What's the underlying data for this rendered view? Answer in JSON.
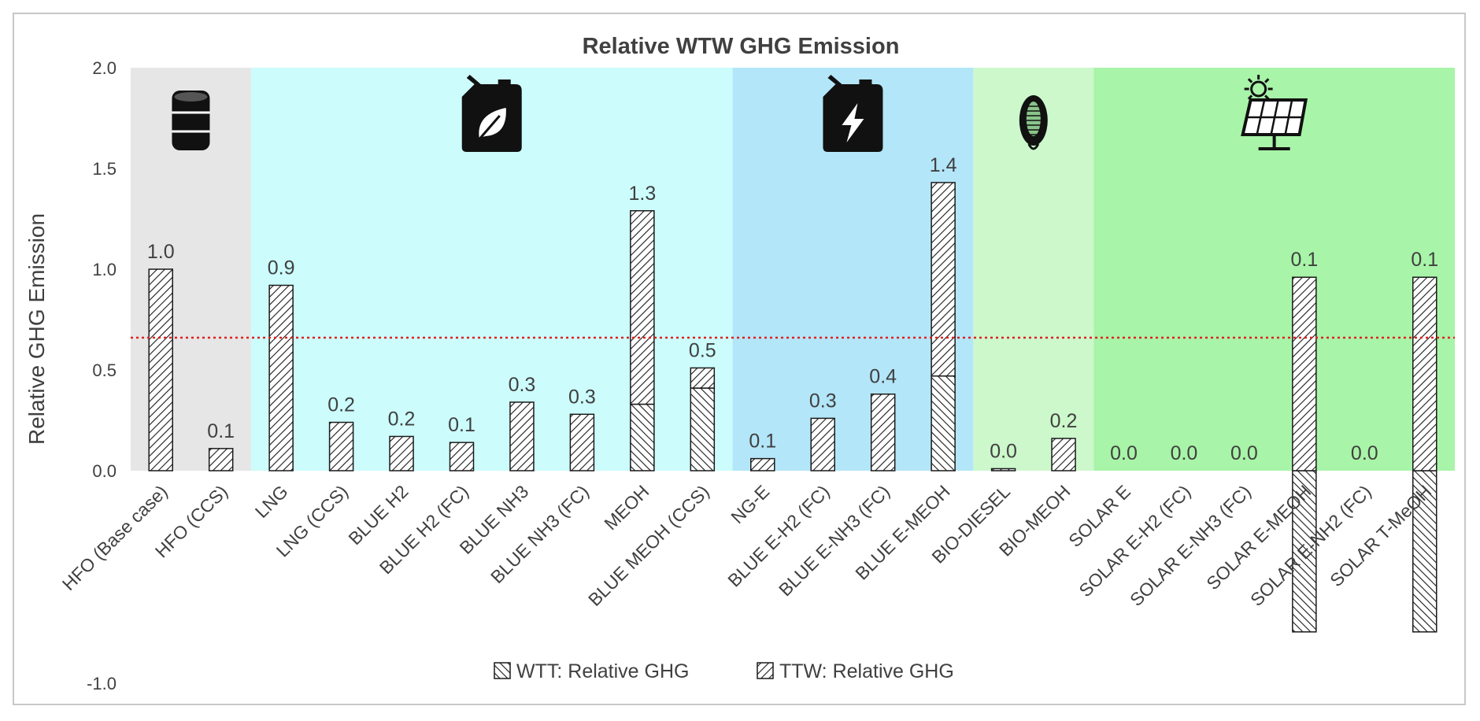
{
  "chart_data": {
    "type": "bar",
    "stacked": true,
    "title": "Relative WTW GHG Emission",
    "xlabel": "",
    "ylabel": "Relative GHG Emission",
    "ylim": [
      -1.0,
      2.0
    ],
    "yticks": [
      "-1.0",
      "0.0",
      "0.5",
      "1.0",
      "1.5",
      "2.0"
    ],
    "ytick_values": [
      -1.0,
      0.0,
      0.5,
      1.0,
      1.5,
      2.0
    ],
    "reference_line": {
      "y": 0.66,
      "color": "#e02020",
      "style": "dotted"
    },
    "categories": [
      "HFO (Base case)",
      "HFO (CCS)",
      "LNG",
      "LNG (CCS)",
      "BLUE H2",
      "BLUE H2 (FC)",
      "BLUE NH3",
      "BLUE NH3 (FC)",
      "MEOH",
      "BLUE MEOH (CCS)",
      "NG-E",
      "BLUE E-H2 (FC)",
      "BLUE E-NH3 (FC)",
      "BLUE E-MEOH",
      "BIO-DIESEL",
      "BIO-MEOH",
      "SOLAR E",
      "SOLAR E-H2 (FC)",
      "SOLAR E-NH3 (FC)",
      "SOLAR E-MEOH",
      "SOLAR E-NH2 (FC)",
      "SOLAR T-MeOH"
    ],
    "series": [
      {
        "name": "WTT: Relative GHG",
        "values": [
          0.0,
          0.0,
          0.0,
          0.0,
          0.0,
          0.0,
          0.0,
          0.0,
          0.33,
          0.41,
          0.0,
          0.0,
          0.0,
          0.47,
          0.0,
          0.0,
          0.0,
          0.0,
          0.0,
          -0.8,
          0.0,
          -0.8
        ]
      },
      {
        "name": "TTW: Relative GHG",
        "values": [
          1.0,
          0.11,
          0.92,
          0.24,
          0.17,
          0.14,
          0.34,
          0.28,
          0.96,
          0.1,
          0.06,
          0.26,
          0.38,
          0.96,
          0.01,
          0.16,
          0.0,
          0.0,
          0.0,
          0.96,
          0.0,
          0.96
        ]
      }
    ],
    "data_labels": [
      "1.0",
      "0.1",
      "0.9",
      "0.2",
      "0.2",
      "0.1",
      "0.3",
      "0.3",
      "1.3",
      "0.5",
      "0.1",
      "0.3",
      "0.4",
      "1.4",
      "0.0",
      "0.2",
      "0.0",
      "0.0",
      "0.0",
      "0.1",
      "0.0",
      "0.1"
    ],
    "groups": [
      {
        "name": "fossil-oil",
        "icon": "oil-barrel-icon",
        "from": 0,
        "to": 1,
        "color": "#e6e6e6"
      },
      {
        "name": "blue-fuels",
        "icon": "fuel-can-leaf-icon",
        "from": 2,
        "to": 9,
        "color": "#ccfcfc"
      },
      {
        "name": "blue-e-fuels",
        "icon": "fuel-can-bolt-icon",
        "from": 10,
        "to": 13,
        "color": "#b3e6f8"
      },
      {
        "name": "bio-fuels",
        "icon": "corn-icon",
        "from": 14,
        "to": 15,
        "color": "#ccf8cc"
      },
      {
        "name": "solar-fuels",
        "icon": "solar-panel-icon",
        "from": 16,
        "to": 21,
        "color": "#a8f4a8"
      }
    ],
    "legend": {
      "placement": "bottom-center"
    }
  }
}
